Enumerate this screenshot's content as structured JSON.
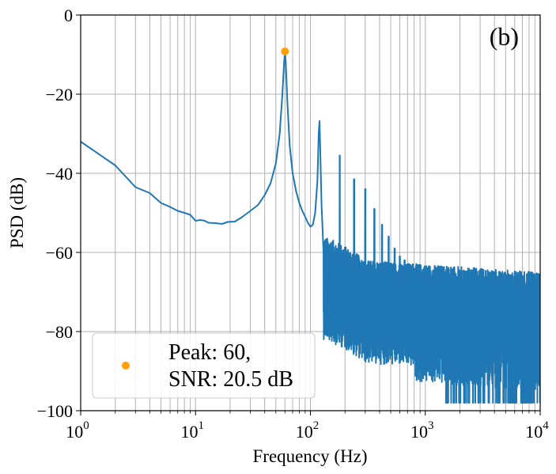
{
  "chart_data": {
    "type": "line",
    "panel_label": "(b)",
    "title": "",
    "xlabel": "Frequency (Hz)",
    "ylabel": "PSD (dB)",
    "x_scale": "log",
    "xlim": [
      1,
      10000
    ],
    "ylim": [
      -100,
      0
    ],
    "grid": true,
    "line_color": "#1f77b4",
    "marker_color": "#ff9f0a",
    "x_ticks": [
      {
        "base": "10",
        "exp": "0"
      },
      {
        "base": "10",
        "exp": "1"
      },
      {
        "base": "10",
        "exp": "2"
      },
      {
        "base": "10",
        "exp": "3"
      },
      {
        "base": "10",
        "exp": "4"
      }
    ],
    "y_ticks": [
      "0",
      "−20",
      "−40",
      "−60",
      "−80",
      "−100"
    ],
    "y_tick_values": [
      0,
      -20,
      -40,
      -60,
      -80,
      -100
    ],
    "peak": {
      "x": 60,
      "y": -9.2
    },
    "legend": {
      "position": "lower-left",
      "line1": "Peak: 60,",
      "line2": "SNR: 20.5 dB"
    },
    "series": [
      {
        "x": [
          1,
          2,
          3,
          4,
          5,
          6,
          7,
          8,
          9,
          10,
          11,
          12,
          13,
          15,
          17,
          19,
          22,
          25,
          30,
          35,
          40,
          45,
          50,
          54,
          57,
          59,
          60,
          61,
          63,
          66,
          70,
          75,
          80,
          85,
          90,
          95,
          100,
          105,
          110,
          115,
          118,
          120,
          122,
          125,
          130
        ],
        "y": [
          -32,
          -38,
          -43.5,
          -45,
          -47.5,
          -48.5,
          -49.5,
          -50,
          -50.5,
          -52,
          -51.8,
          -52,
          -52.5,
          -52.6,
          -52.8,
          -52.3,
          -52.2,
          -51.2,
          -49.5,
          -48,
          -45.5,
          -42.5,
          -37.5,
          -30,
          -20,
          -12,
          -9.2,
          -12,
          -22,
          -33,
          -40,
          -44.5,
          -47.5,
          -49.5,
          -51,
          -52.5,
          -53.5,
          -53,
          -50,
          -42,
          -30,
          -26.8,
          -35,
          -48,
          -60
        ]
      }
    ]
  }
}
